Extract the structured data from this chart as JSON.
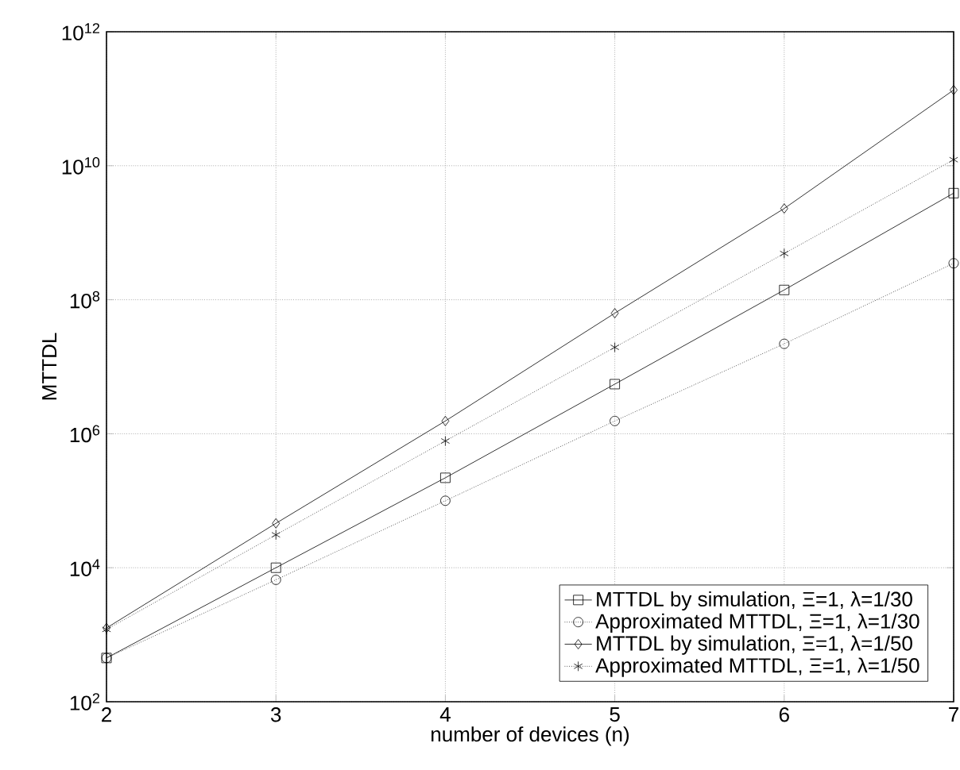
{
  "chart_data": {
    "type": "line",
    "xlabel": "number of devices (n)",
    "ylabel": "MTTDL",
    "x": [
      2,
      3,
      4,
      5,
      6,
      7
    ],
    "series": [
      {
        "name": "MTTDL by simulation, Ξ=1, λ=1/30",
        "color": "#000000",
        "marker": "square",
        "line_style": "solid",
        "values": [
          450,
          10000,
          220000,
          5500000,
          140000000,
          3900000000
        ]
      },
      {
        "name": "Approximated MTTDL, Ξ=1, λ=1/30",
        "color": "#000000",
        "marker": "circle",
        "line_style": "dotted",
        "values": [
          450,
          6600,
          100000,
          1550000,
          22000000,
          350000000
        ]
      },
      {
        "name": "MTTDL by simulation, Ξ=1, λ=1/50",
        "color": "#000000",
        "marker": "diamond",
        "line_style": "solid",
        "values": [
          1260,
          46000,
          1550000,
          63000000,
          2300000000,
          135000000000
        ]
      },
      {
        "name": "Approximated MTTDL, Ξ=1, λ=1/50",
        "color": "#000000",
        "marker": "cross",
        "line_style": "dotted",
        "values": [
          1200,
          31000,
          780000,
          19500000,
          490000000,
          12300000000
        ]
      }
    ],
    "log": "y",
    "grid": true,
    "legend": "bottom right",
    "xlim": [
      2,
      7
    ],
    "ylim": [
      100,
      1000000000000
    ],
    "xticks": [
      2,
      3,
      4,
      5,
      6,
      7
    ],
    "yticks": [
      {
        "value": 100,
        "label": "10$^{2}$"
      },
      {
        "value": 10000,
        "label": "10$^{4}$"
      },
      {
        "value": 1000000,
        "label": "10$^{6}$"
      },
      {
        "value": 100000000,
        "label": "10$^{8}$"
      },
      {
        "value": 10000000000,
        "label": "10$^{10}$"
      },
      {
        "value": 1000000000000,
        "label": "10$^{12}$"
      }
    ]
  }
}
